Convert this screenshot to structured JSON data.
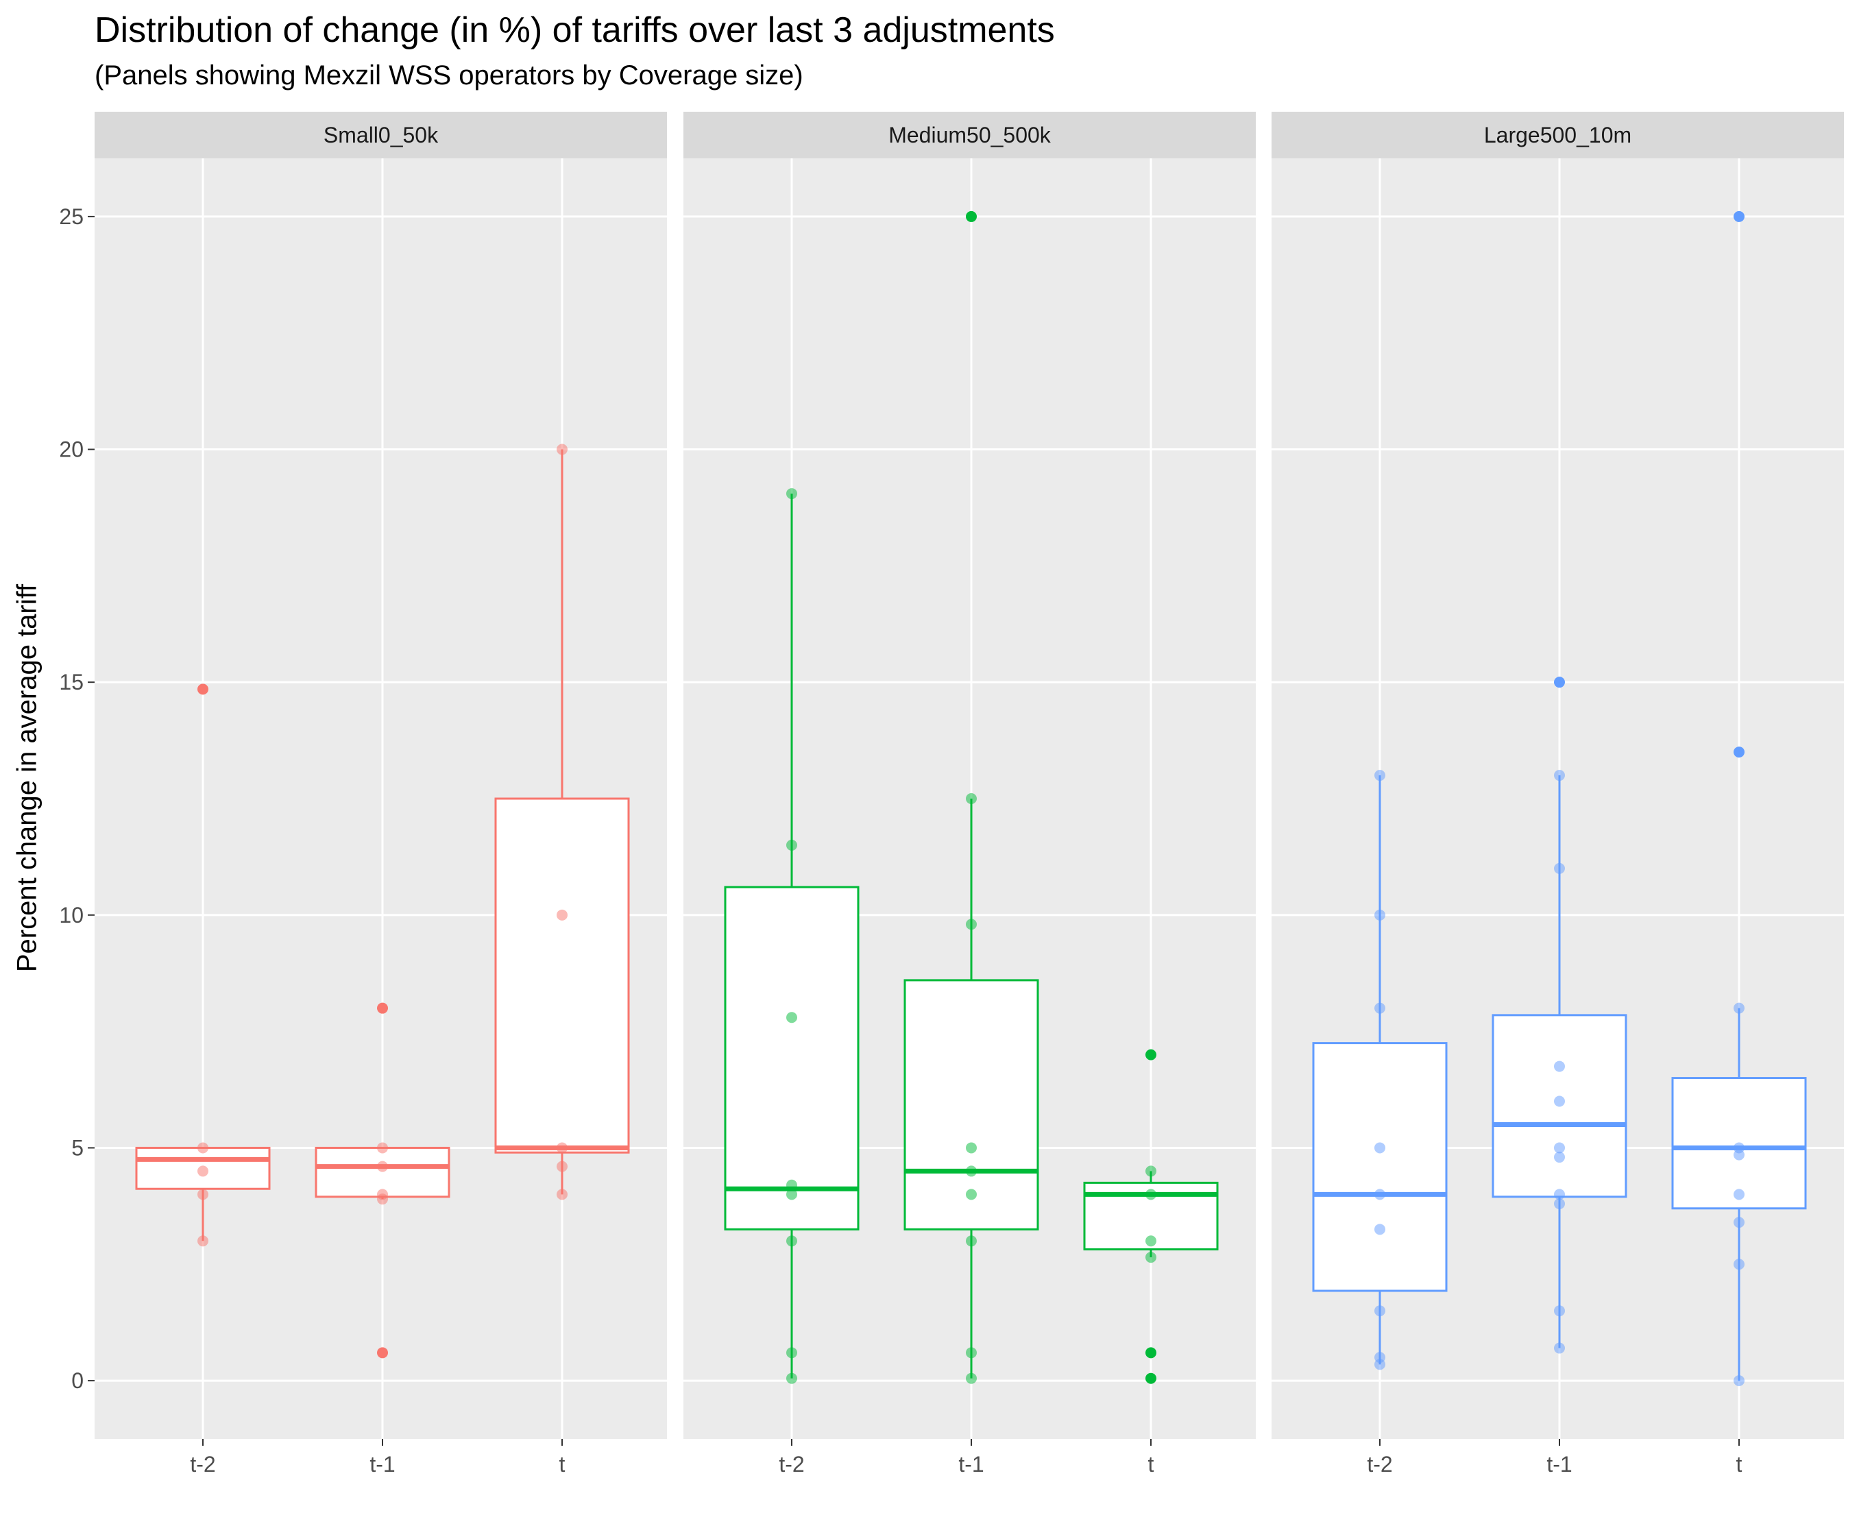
{
  "chart_data": {
    "type": "boxplot",
    "title": "Distribution of change (in %) of tariffs over last 3 adjustments",
    "subtitle": "(Panels showing Mexzil WSS operators by Coverage size)",
    "xlabel": "",
    "ylabel": "Percent change in average tariff",
    "ylim": [
      -1.25,
      26.25
    ],
    "yticks": [
      0,
      5,
      10,
      15,
      20,
      25
    ],
    "categories": [
      "t-2",
      "t-1",
      "t"
    ],
    "grid": true,
    "legend": "none",
    "panels": [
      {
        "name": "Small0_50k",
        "color": "#F8766D",
        "boxes": [
          {
            "x": "t-2",
            "lower": 3.0,
            "q1": 4.12,
            "median": 4.75,
            "q3": 5.0,
            "upper": 5.0,
            "outliers": [
              14.85
            ],
            "points": [
              5.0,
              4.5,
              4.0,
              3.0
            ]
          },
          {
            "x": "t-1",
            "lower": 3.9,
            "q1": 3.95,
            "median": 4.6,
            "q3": 5.0,
            "upper": 5.0,
            "outliers": [
              8.0,
              0.6
            ],
            "points": [
              5.0,
              4.6,
              4.0,
              3.9
            ]
          },
          {
            "x": "t",
            "lower": 4.0,
            "q1": 4.9,
            "median": 5.0,
            "q3": 12.5,
            "upper": 20.0,
            "outliers": [],
            "points": [
              20.0,
              10.0,
              5.0,
              4.6,
              4.0
            ]
          }
        ]
      },
      {
        "name": "Medium50_500k",
        "color": "#00BA38",
        "boxes": [
          {
            "x": "t-2",
            "lower": 0.05,
            "q1": 3.25,
            "median": 4.12,
            "q3": 10.6,
            "upper": 19.05,
            "outliers": [],
            "points": [
              19.05,
              11.5,
              7.8,
              4.2,
              4.0,
              3.0,
              0.6,
              0.05
            ]
          },
          {
            "x": "t-1",
            "lower": 0.05,
            "q1": 3.25,
            "median": 4.5,
            "q3": 8.6,
            "upper": 12.5,
            "outliers": [
              25.0
            ],
            "points": [
              12.5,
              9.8,
              5.0,
              4.5,
              4.0,
              3.0,
              0.6,
              0.05
            ]
          },
          {
            "x": "t",
            "lower": 2.65,
            "q1": 2.82,
            "median": 4.0,
            "q3": 4.25,
            "upper": 4.5,
            "outliers": [
              7.0,
              0.6,
              0.05
            ],
            "points": [
              4.5,
              4.0,
              3.0,
              2.65
            ]
          }
        ]
      },
      {
        "name": "Large500_10m",
        "color": "#619CFF",
        "boxes": [
          {
            "x": "t-2",
            "lower": 0.35,
            "q1": 1.93,
            "median": 4.0,
            "q3": 7.25,
            "upper": 13.0,
            "outliers": [],
            "points": [
              13.0,
              10.0,
              8.0,
              5.0,
              4.0,
              3.25,
              1.5,
              0.5,
              0.35
            ]
          },
          {
            "x": "t-1",
            "lower": 0.7,
            "q1": 3.95,
            "median": 5.5,
            "q3": 7.85,
            "upper": 13.0,
            "outliers": [
              15.0
            ],
            "points": [
              13.0,
              11.0,
              6.75,
              6.0,
              5.0,
              4.8,
              4.0,
              3.8,
              1.5,
              0.7
            ]
          },
          {
            "x": "t",
            "lower": 0.0,
            "q1": 3.7,
            "median": 5.0,
            "q3": 6.5,
            "upper": 8.0,
            "outliers": [
              25.0,
              13.5
            ],
            "points": [
              8.0,
              5.0,
              4.85,
              4.0,
              3.4,
              2.5,
              0.0
            ]
          }
        ]
      }
    ]
  }
}
